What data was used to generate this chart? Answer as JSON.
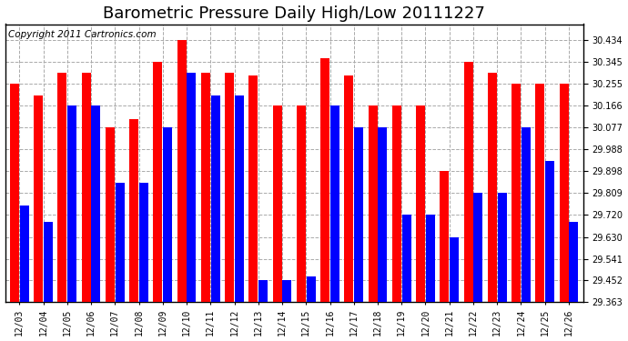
{
  "title": "Barometric Pressure Daily High/Low 20111227",
  "copyright": "Copyright 2011 Cartronics.com",
  "dates": [
    "12/03",
    "12/04",
    "12/05",
    "12/06",
    "12/07",
    "12/08",
    "12/09",
    "12/10",
    "12/11",
    "12/12",
    "12/13",
    "12/14",
    "12/15",
    "12/16",
    "12/17",
    "12/18",
    "12/19",
    "12/20",
    "12/21",
    "12/22",
    "12/23",
    "12/24",
    "12/25",
    "12/26"
  ],
  "highs": [
    30.255,
    30.21,
    30.3,
    30.3,
    30.077,
    30.11,
    30.345,
    30.434,
    30.3,
    30.3,
    30.29,
    30.166,
    30.166,
    30.36,
    30.29,
    30.166,
    30.166,
    30.166,
    29.898,
    30.345,
    30.3,
    30.255,
    30.255,
    30.255
  ],
  "lows": [
    29.76,
    29.69,
    30.166,
    30.166,
    29.853,
    29.853,
    30.077,
    30.3,
    30.21,
    30.21,
    29.452,
    29.452,
    29.47,
    30.166,
    30.077,
    30.077,
    29.72,
    29.72,
    29.63,
    29.81,
    29.81,
    30.077,
    29.94,
    29.69
  ],
  "high_color": "#FF0000",
  "low_color": "#0000FF",
  "bg_color": "#FFFFFF",
  "plot_bg_color": "#FFFFFF",
  "grid_color": "#AAAAAA",
  "yticks": [
    29.363,
    29.452,
    29.541,
    29.63,
    29.72,
    29.809,
    29.898,
    29.988,
    30.077,
    30.166,
    30.255,
    30.345,
    30.434
  ],
  "ylim_min": 29.363,
  "ylim_max": 30.5,
  "title_fontsize": 13,
  "copyright_fontsize": 7.5
}
